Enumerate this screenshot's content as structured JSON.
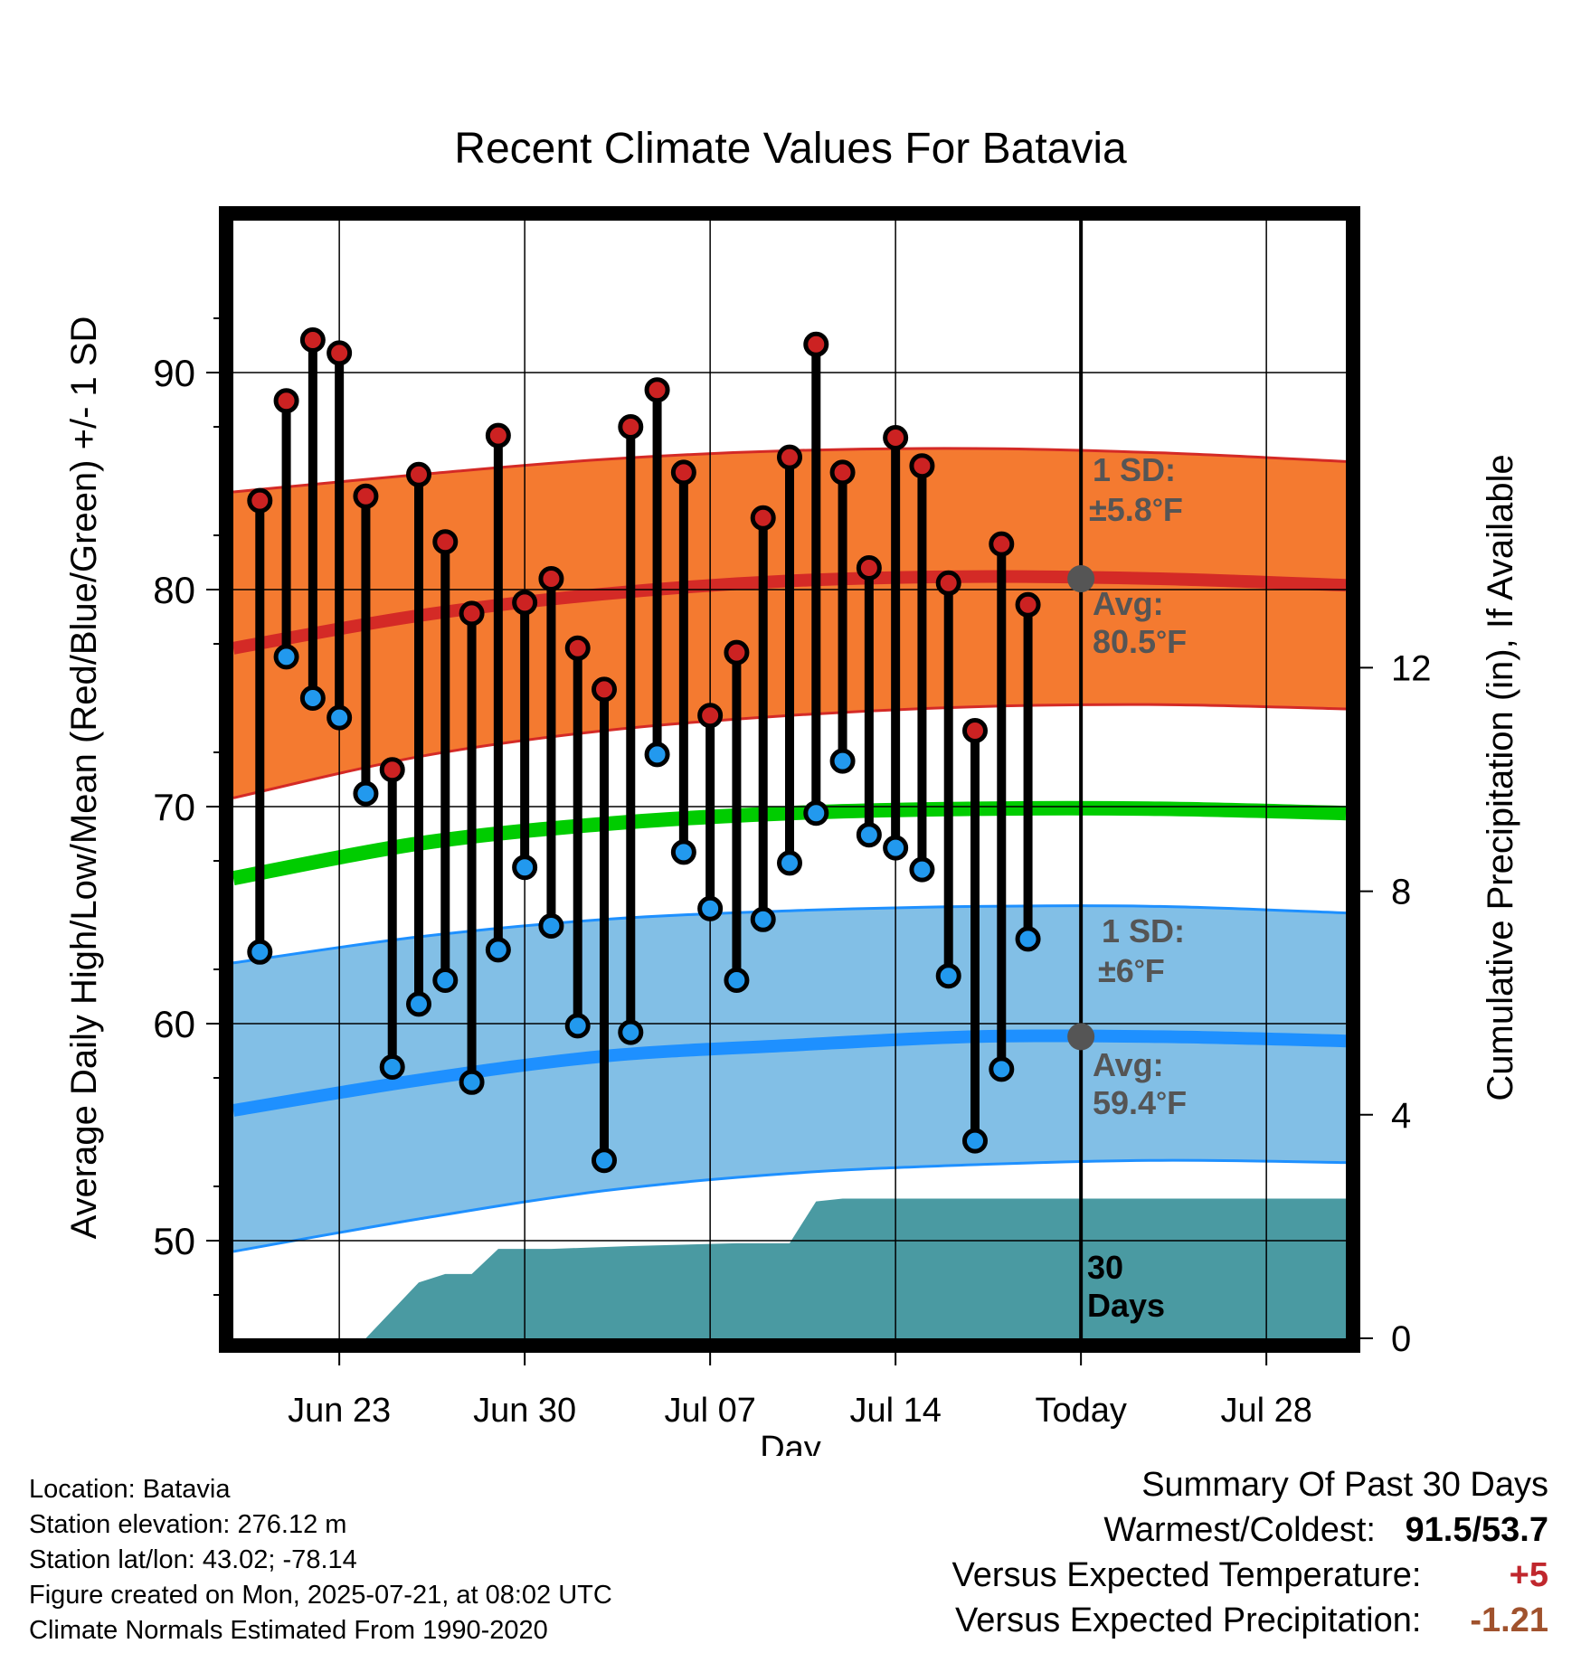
{
  "chart_data": {
    "type": "line",
    "title": "Recent Climate Values For Batavia",
    "xlabel": "Day",
    "ylabel": "Average Daily High/Low/Mean (Red/Blue/Green) +/- 1 SD",
    "y2label": "Cumulative Precipitation (in), If Available",
    "xlim": [
      "2025-06-19",
      "2025-07-31"
    ],
    "ylim": [
      45.5,
      97
    ],
    "y2lim": [
      0,
      20
    ],
    "grid": true,
    "x_ticks": [
      {
        "date": "2025-06-23",
        "label": "Jun 23"
      },
      {
        "date": "2025-06-30",
        "label": "Jun 30"
      },
      {
        "date": "2025-07-07",
        "label": "Jul 07"
      },
      {
        "date": "2025-07-14",
        "label": "Jul 14"
      },
      {
        "date": "2025-07-21",
        "label": "Today"
      },
      {
        "date": "2025-07-28",
        "label": "Jul 28"
      }
    ],
    "y_ticks": [
      50,
      60,
      70,
      80,
      90
    ],
    "y2_ticks": [
      0,
      4,
      8,
      12
    ],
    "daily": {
      "dates": [
        "2025-06-20",
        "2025-06-21",
        "2025-06-22",
        "2025-06-23",
        "2025-06-24",
        "2025-06-25",
        "2025-06-26",
        "2025-06-27",
        "2025-06-28",
        "2025-06-29",
        "2025-06-30",
        "2025-07-01",
        "2025-07-02",
        "2025-07-03",
        "2025-07-04",
        "2025-07-05",
        "2025-07-06",
        "2025-07-07",
        "2025-07-08",
        "2025-07-09",
        "2025-07-10",
        "2025-07-11",
        "2025-07-12",
        "2025-07-13",
        "2025-07-14",
        "2025-07-15",
        "2025-07-16",
        "2025-07-17",
        "2025-07-18",
        "2025-07-19",
        "2025-07-20"
      ],
      "high": [
        84.1,
        88.7,
        91.5,
        90.9,
        84.3,
        71.7,
        85.3,
        82.2,
        78.9,
        87.1,
        79.4,
        80.5,
        77.3,
        75.4,
        87.5,
        89.2,
        85.4,
        74.2,
        77.1,
        83.3,
        86.1,
        91.3,
        85.4,
        81.0,
        87.0,
        85.7,
        80.3,
        73.5,
        82.1,
        79.3,
        null
      ],
      "low": [
        63.3,
        76.9,
        75.0,
        74.1,
        70.6,
        58.0,
        60.9,
        62.0,
        57.3,
        63.4,
        67.2,
        64.5,
        59.9,
        53.7,
        59.6,
        72.4,
        67.9,
        65.3,
        62.0,
        64.8,
        67.4,
        69.7,
        72.1,
        68.7,
        68.1,
        67.1,
        62.2,
        54.6,
        57.9,
        63.9,
        null
      ]
    },
    "normals": {
      "dates": [
        "2025-06-19",
        "2025-06-26",
        "2025-07-03",
        "2025-07-10",
        "2025-07-17",
        "2025-07-24",
        "2025-07-31"
      ],
      "high_avg": [
        77.3,
        78.8,
        79.8,
        80.4,
        80.6,
        80.5,
        80.2
      ],
      "high_upper": [
        84.5,
        85.3,
        86.0,
        86.4,
        86.5,
        86.3,
        85.9
      ],
      "high_lower": [
        70.4,
        72.3,
        73.5,
        74.2,
        74.6,
        74.7,
        74.5
      ],
      "low_avg": [
        56.0,
        57.4,
        58.5,
        59.0,
        59.4,
        59.4,
        59.2
      ],
      "low_upper": [
        62.8,
        64.0,
        64.8,
        65.2,
        65.4,
        65.4,
        65.1
      ],
      "low_lower": [
        49.5,
        51.0,
        52.3,
        53.1,
        53.5,
        53.7,
        53.6
      ],
      "mean_avg": [
        66.7,
        68.3,
        69.2,
        69.7,
        69.9,
        69.9,
        69.7
      ]
    },
    "precipitation": {
      "dates": [
        "2025-06-24",
        "2025-06-25",
        "2025-06-26",
        "2025-06-27",
        "2025-06-28",
        "2025-06-29",
        "2025-07-01",
        "2025-07-04",
        "2025-07-08",
        "2025-07-10",
        "2025-07-11",
        "2025-07-12",
        "2025-07-31"
      ],
      "cumulative": [
        0.0,
        0.5,
        1.0,
        1.15,
        1.15,
        1.6,
        1.6,
        1.65,
        1.7,
        1.7,
        2.45,
        2.5,
        2.5
      ]
    },
    "today": "2025-07-21",
    "today_markers": {
      "high_avg": 80.5,
      "low_avg": 59.4
    },
    "annotations": {
      "high_sd_line1": "1 SD:",
      "high_sd_line2": "±5.8°F",
      "high_avg_line1": "Avg:",
      "high_avg_line2": "80.5°F",
      "low_sd_line1": "1 SD:",
      "low_sd_line2": "±6°F",
      "low_avg_line1": "Avg:",
      "low_avg_line2": "59.4°F",
      "days_line1": "30",
      "days_line2": "Days"
    },
    "colors": {
      "high_band": "#f47a30",
      "high_line": "#d42a26",
      "low_band": "#82bfe6",
      "low_line": "#1e90ff",
      "mean_line": "#00cc00",
      "precip": "#4a9aa2",
      "high_dot": "#cc2222",
      "low_dot": "#2299ee",
      "annotation": "#555555"
    }
  },
  "footer": {
    "location": "Location: Batavia",
    "elevation": "Station elevation: 276.12 m",
    "latlon": "Station lat/lon: 43.02; -78.14",
    "created": "Figure created on Mon, 2025-07-21, at 08:02 UTC",
    "normals": "Climate Normals Estimated From 1990-2020"
  },
  "summary": {
    "title": "Summary Of Past 30 Days",
    "warm_cold_label": "Warmest/Coldest:",
    "warm_cold_value": "91.5/53.7",
    "temp_label": "Versus Expected Temperature:",
    "temp_value": "+5",
    "precip_label": "Versus Expected Precipitation:",
    "precip_value": "-1.21"
  }
}
